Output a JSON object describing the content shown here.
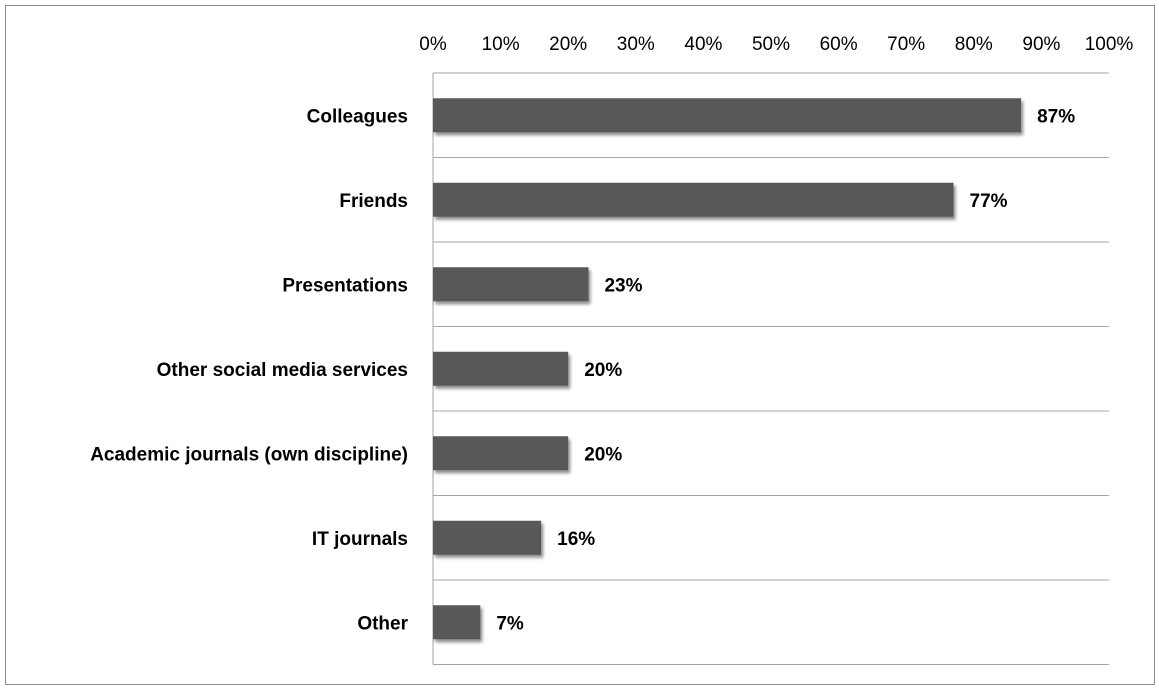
{
  "chart_data": {
    "type": "bar",
    "orientation": "horizontal",
    "categories": [
      "Colleagues",
      "Friends",
      "Presentations",
      "Other social media services",
      "Academic journals (own discipline)",
      "IT journals",
      "Other"
    ],
    "values": [
      87,
      77,
      23,
      20,
      20,
      16,
      7
    ],
    "data_labels": [
      "87%",
      "77%",
      "23%",
      "20%",
      "20%",
      "16%",
      "7%"
    ],
    "x_ticks": [
      "0%",
      "10%",
      "20%",
      "30%",
      "40%",
      "50%",
      "60%",
      "70%",
      "80%",
      "90%",
      "100%"
    ],
    "xlim": [
      0,
      100
    ],
    "x_axis_position": "top",
    "grid": "horizontal separators between categories",
    "legend": "none",
    "title": "",
    "xlabel": "",
    "ylabel": "",
    "bar_color": "#595959",
    "bar_shadow_color": "#bdbdbd",
    "grid_color": "#a6a6a6"
  }
}
